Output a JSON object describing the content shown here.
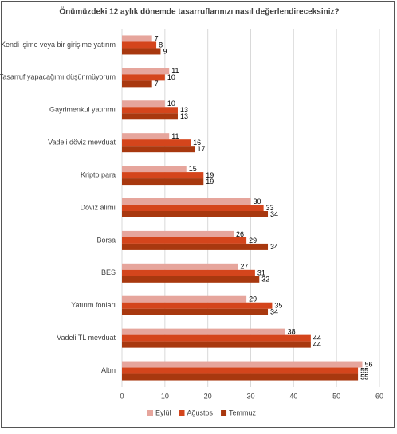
{
  "chart_data": {
    "type": "bar",
    "orientation": "horizontal",
    "title": "Önümüzdeki 12 aylık dönemde tasarruflarınızı nasıl değerlendireceksiniz?",
    "categories": [
      "Kendi işime veya bir girişime yatırım",
      "Tasarruf yapacağımı düşünmüyorum",
      "Gayrimenkul yatırımı",
      "Vadeli döviz mevduat",
      "Kripto para",
      "Döviz alımı",
      "Borsa",
      "BES",
      "Yatırım fonları",
      "Vadeli TL mevduat",
      "Altın"
    ],
    "series": [
      {
        "name": "Eylül",
        "color": "#e6a59c",
        "values": [
          7,
          11,
          10,
          11,
          15,
          30,
          26,
          27,
          29,
          38,
          56
        ]
      },
      {
        "name": "Ağustos",
        "color": "#d4451c",
        "values": [
          8,
          10,
          13,
          16,
          19,
          33,
          29,
          31,
          35,
          44,
          55
        ]
      },
      {
        "name": "Temmuz",
        "color": "#a8380f",
        "values": [
          9,
          7,
          13,
          17,
          19,
          34,
          34,
          32,
          34,
          44,
          55
        ]
      }
    ],
    "xlim": [
      0,
      60
    ],
    "xticks": [
      0,
      10,
      20,
      30,
      40,
      50,
      60
    ],
    "grid": true,
    "legend": "bottom"
  }
}
